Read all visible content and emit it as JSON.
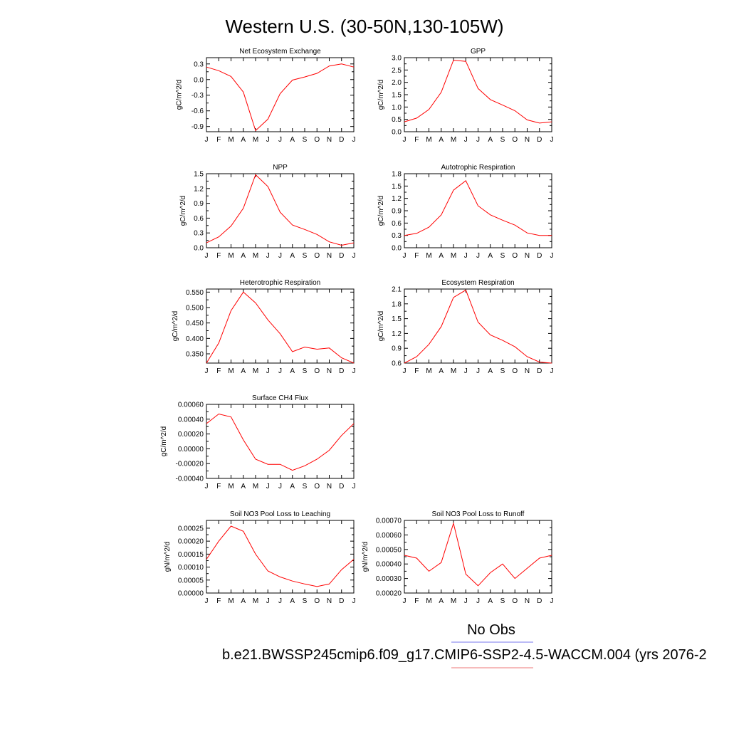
{
  "page_title": "Western U.S. (30-50N,130-105W)",
  "legend": {
    "obs_label": "No Obs",
    "obs_color": "#7777ee",
    "case_label": "b.e21.BWSSP245cmip6.f09_g17.CMIP6-SSP2-4.5-WACCM.004 (yrs 2076-2",
    "case_color": "#ee7777"
  },
  "line_color": "#ff0000",
  "chart_data": [
    {
      "type": "line",
      "title": "Net Ecosystem Exchange",
      "ylabel": "gC/m^2/d",
      "categories": [
        "J",
        "F",
        "M",
        "A",
        "M",
        "J",
        "J",
        "A",
        "S",
        "O",
        "N",
        "D",
        "J"
      ],
      "ylim": [
        -1.0,
        0.42
      ],
      "yticks": [
        "0.3",
        "0.0",
        "-0.3",
        "-0.6",
        "-0.9"
      ],
      "ytick_values": [
        0.3,
        0.0,
        -0.3,
        -0.6,
        -0.9
      ],
      "values": [
        0.24,
        0.17,
        0.06,
        -0.24,
        -0.98,
        -0.76,
        -0.27,
        -0.01,
        0.05,
        0.12,
        0.26,
        0.3,
        0.24
      ]
    },
    {
      "type": "line",
      "title": "GPP",
      "ylabel": "gC/m^2/d",
      "categories": [
        "J",
        "F",
        "M",
        "A",
        "M",
        "J",
        "J",
        "A",
        "S",
        "O",
        "N",
        "D",
        "J"
      ],
      "ylim": [
        0.0,
        3.0
      ],
      "yticks": [
        "3.0",
        "2.5",
        "2.0",
        "1.5",
        "1.0",
        "0.5",
        "0.0"
      ],
      "ytick_values": [
        3.0,
        2.5,
        2.0,
        1.5,
        1.0,
        0.5,
        0.0
      ],
      "values": [
        0.4,
        0.55,
        0.9,
        1.6,
        2.9,
        2.85,
        1.75,
        1.3,
        1.08,
        0.85,
        0.48,
        0.35,
        0.4
      ]
    },
    {
      "type": "line",
      "title": "NPP",
      "ylabel": "gC/m^2/d",
      "categories": [
        "J",
        "F",
        "M",
        "A",
        "M",
        "J",
        "J",
        "A",
        "S",
        "O",
        "N",
        "D",
        "J"
      ],
      "ylim": [
        0.0,
        1.5
      ],
      "yticks": [
        "1.5",
        "1.2",
        "0.9",
        "0.6",
        "0.3",
        "0.0"
      ],
      "ytick_values": [
        1.5,
        1.2,
        0.9,
        0.6,
        0.3,
        0.0
      ],
      "values": [
        0.1,
        0.22,
        0.44,
        0.8,
        1.48,
        1.24,
        0.72,
        0.46,
        0.37,
        0.27,
        0.12,
        0.05,
        0.1
      ]
    },
    {
      "type": "line",
      "title": "Autotrophic Respiration",
      "ylabel": "gC/m^2/d",
      "categories": [
        "J",
        "F",
        "M",
        "A",
        "M",
        "J",
        "J",
        "A",
        "S",
        "O",
        "N",
        "D",
        "J"
      ],
      "ylim": [
        0.0,
        1.8
      ],
      "yticks": [
        "1.8",
        "1.5",
        "1.2",
        "0.9",
        "0.6",
        "0.3",
        "0.0"
      ],
      "ytick_values": [
        1.8,
        1.5,
        1.2,
        0.9,
        0.6,
        0.3,
        0.0
      ],
      "values": [
        0.3,
        0.35,
        0.5,
        0.8,
        1.4,
        1.63,
        1.02,
        0.8,
        0.67,
        0.55,
        0.36,
        0.3,
        0.3
      ]
    },
    {
      "type": "line",
      "title": "Heterotrophic Respiration",
      "ylabel": "gC/m^2/d",
      "categories": [
        "J",
        "F",
        "M",
        "A",
        "M",
        "J",
        "J",
        "A",
        "S",
        "O",
        "N",
        "D",
        "J"
      ],
      "ylim": [
        0.32,
        0.56
      ],
      "yticks": [
        "0.550",
        "0.500",
        "0.450",
        "0.400",
        "0.350"
      ],
      "ytick_values": [
        0.55,
        0.5,
        0.45,
        0.4,
        0.35
      ],
      "values": [
        0.32,
        0.385,
        0.49,
        0.55,
        0.515,
        0.46,
        0.415,
        0.357,
        0.372,
        0.365,
        0.369,
        0.337,
        0.32
      ]
    },
    {
      "type": "line",
      "title": "Ecosystem Respiration",
      "ylabel": "gC/m^2/d",
      "categories": [
        "J",
        "F",
        "M",
        "A",
        "M",
        "J",
        "J",
        "A",
        "S",
        "O",
        "N",
        "D",
        "J"
      ],
      "ylim": [
        0.6,
        2.1
      ],
      "yticks": [
        "2.1",
        "1.8",
        "1.5",
        "1.2",
        "0.9",
        "0.6"
      ],
      "ytick_values": [
        2.1,
        1.8,
        1.5,
        1.2,
        0.9,
        0.6
      ],
      "values": [
        0.6,
        0.73,
        0.98,
        1.34,
        1.93,
        2.08,
        1.43,
        1.17,
        1.06,
        0.93,
        0.73,
        0.62,
        0.6
      ]
    },
    {
      "type": "line",
      "title": "Surface CH4 Flux",
      "ylabel": "gC/m^2/d",
      "categories": [
        "J",
        "F",
        "M",
        "A",
        "M",
        "J",
        "J",
        "A",
        "S",
        "O",
        "N",
        "D",
        "J"
      ],
      "ylim": [
        -0.0004,
        0.0006
      ],
      "yticks": [
        "0.00060",
        "0.00040",
        "0.00020",
        "0.00000",
        "-0.00020",
        "-0.00040"
      ],
      "ytick_values": [
        0.0006,
        0.0004,
        0.0002,
        0.0,
        -0.0002,
        -0.0004
      ],
      "values": [
        0.00034,
        0.00047,
        0.00043,
        0.00012,
        -0.00014,
        -0.00021,
        -0.00021,
        -0.00029,
        -0.00023,
        -0.00014,
        -2e-05,
        0.00018,
        0.00034
      ]
    },
    {
      "type": "line",
      "title": "Soil NO3 Pool Loss to Leaching",
      "ylabel": "gN/m^2/d",
      "categories": [
        "J",
        "F",
        "M",
        "A",
        "M",
        "J",
        "J",
        "A",
        "S",
        "O",
        "N",
        "D",
        "J"
      ],
      "ylim": [
        0.0,
        0.00028
      ],
      "yticks": [
        "0.00025",
        "0.00020",
        "0.00015",
        "0.00010",
        "0.00005",
        "0.00000"
      ],
      "ytick_values": [
        0.00025,
        0.0002,
        0.00015,
        0.0001,
        5e-05,
        0.0
      ],
      "values": [
        0.00013,
        0.0002,
        0.000258,
        0.000238,
        0.00015,
        8.5e-05,
        6.2e-05,
        4.6e-05,
        3.5e-05,
        2.5e-05,
        3.5e-05,
        9e-05,
        0.00013
      ]
    },
    {
      "type": "line",
      "title": "Soil NO3 Pool Loss to Runoff",
      "ylabel": "gN/m^2/d",
      "categories": [
        "J",
        "F",
        "M",
        "A",
        "M",
        "J",
        "J",
        "A",
        "S",
        "O",
        "N",
        "D",
        "J"
      ],
      "ylim": [
        0.0002,
        0.0007
      ],
      "yticks": [
        "0.00070",
        "0.00060",
        "0.00050",
        "0.00040",
        "0.00030",
        "0.00020"
      ],
      "ytick_values": [
        0.0007,
        0.0006,
        0.0005,
        0.0004,
        0.0003,
        0.0002
      ],
      "values": [
        0.00046,
        0.00044,
        0.00035,
        0.00041,
        0.00068,
        0.00033,
        0.00025,
        0.00034,
        0.0004,
        0.0003,
        0.00037,
        0.00044,
        0.00046
      ]
    }
  ]
}
